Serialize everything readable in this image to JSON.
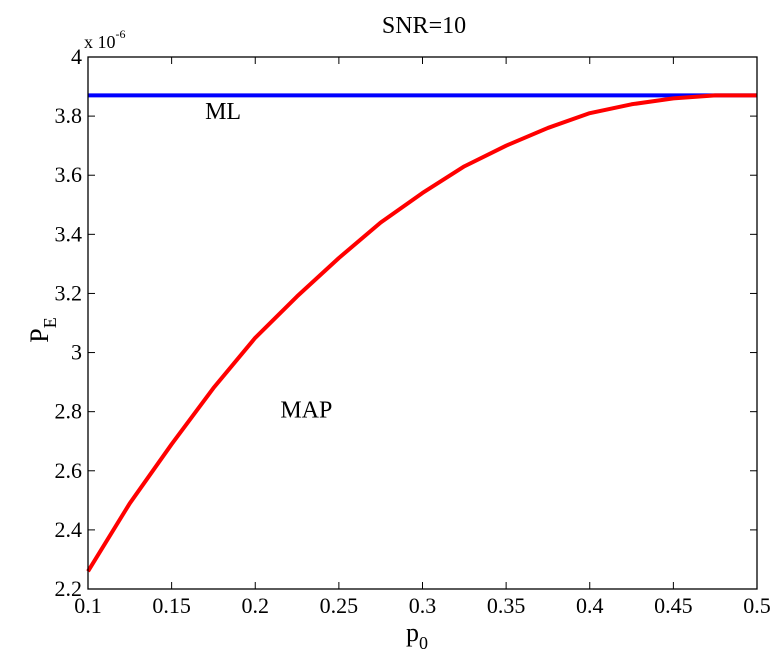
{
  "chart_data": {
    "type": "line",
    "title": "SNR=10",
    "xlabel": {
      "main": "p",
      "sub": "0"
    },
    "ylabel": {
      "main": "P",
      "sub": "E"
    },
    "y_multiplier": {
      "text": "x 10",
      "exponent": "-6"
    },
    "xlim": [
      0.1,
      0.5
    ],
    "ylim": [
      2.2,
      4.0
    ],
    "x_ticks": [
      0.1,
      0.15,
      0.2,
      0.25,
      0.3,
      0.35,
      0.4,
      0.45,
      0.5
    ],
    "x_tick_labels": [
      "0.1",
      "0.15",
      "0.2",
      "0.25",
      "0.3",
      "0.35",
      "0.4",
      "0.45",
      "0.5"
    ],
    "y_ticks": [
      2.2,
      2.4,
      2.6,
      2.8,
      3.0,
      3.2,
      3.4,
      3.6,
      3.8,
      4.0
    ],
    "y_tick_labels": [
      "2.2",
      "2.4",
      "2.6",
      "2.8",
      "3",
      "3.2",
      "3.4",
      "3.6",
      "3.8",
      "4"
    ],
    "grid": false,
    "series": [
      {
        "label": "ML",
        "color": "#0000ff",
        "x": [
          0.1,
          0.5
        ],
        "y": [
          3.87,
          3.87
        ]
      },
      {
        "label": "MAP",
        "color": "#ff0000",
        "x": [
          0.1,
          0.125,
          0.15,
          0.175,
          0.2,
          0.225,
          0.25,
          0.275,
          0.3,
          0.325,
          0.35,
          0.375,
          0.4,
          0.425,
          0.45,
          0.475,
          0.5
        ],
        "y": [
          2.26,
          2.49,
          2.69,
          2.88,
          3.05,
          3.19,
          3.32,
          3.44,
          3.54,
          3.63,
          3.7,
          3.76,
          3.81,
          3.84,
          3.86,
          3.87,
          3.87
        ]
      }
    ],
    "annotations": [
      {
        "text": "ML",
        "x": 0.17,
        "y": 3.79
      },
      {
        "text": "MAP",
        "x": 0.215,
        "y": 2.78
      }
    ]
  }
}
